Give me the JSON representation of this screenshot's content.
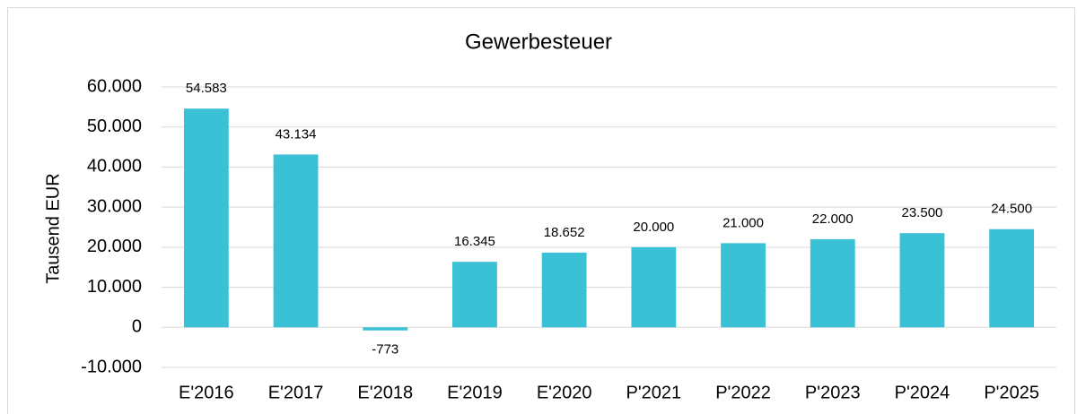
{
  "chart_data": {
    "type": "bar",
    "title": "Gewerbesteuer",
    "y_label": "Tausend EUR",
    "categories": [
      "E'2016",
      "E'2017",
      "E'2018",
      "E'2019",
      "E'2020",
      "P'2021",
      "P'2022",
      "P'2023",
      "P'2024",
      "P'2025"
    ],
    "values": [
      54583,
      43134,
      -773,
      16345,
      18652,
      20000,
      21000,
      22000,
      23500,
      24500
    ],
    "value_labels": [
      "54.583",
      "43.134",
      "-773",
      "16.345",
      "18.652",
      "20.000",
      "21.000",
      "22.000",
      "23.500",
      "24.500"
    ],
    "color": "#3bc1d6",
    "ylim": [
      -10000,
      60000
    ],
    "yticks": [
      {
        "value": -10000,
        "label": "-10.000"
      },
      {
        "value": 10000,
        "label": "10.000"
      },
      0,
      {
        "value": 20000,
        "label": "20.000"
      },
      {
        "value": 30000,
        "label": "30.000"
      },
      {
        "value": 40000,
        "label": "40.000"
      },
      {
        "value": 50000,
        "label": "50.000"
      },
      {
        "value": 60000,
        "label": "60.000"
      }
    ],
    "grid": true
  }
}
